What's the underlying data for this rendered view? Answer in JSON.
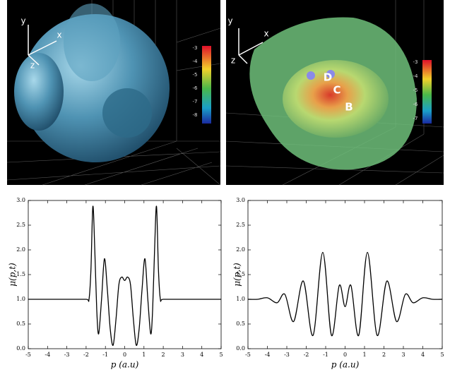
{
  "images": [
    {
      "axis_labels": [
        "y",
        "x",
        "z"
      ],
      "colorbar_ticks": [
        "-3",
        "-4",
        "-5",
        "-6",
        "-7",
        "-8"
      ]
    },
    {
      "axis_labels": [
        "y",
        "x",
        "z"
      ],
      "markers": [
        "D",
        "C",
        "B"
      ],
      "colorbar_ticks": [
        "-3",
        "-4",
        "-5",
        "-6",
        "-7"
      ]
    }
  ],
  "chart_data": [
    {
      "type": "line",
      "x_label": "p (a.u)",
      "y_label": "μ(p,t)",
      "x": [
        -5,
        -4,
        -3,
        -2,
        -1.85,
        -1.75,
        -1.65,
        -1.55,
        -1.45,
        -1.35,
        -1.2,
        -1.05,
        -0.9,
        -0.75,
        -0.6,
        -0.45,
        -0.3,
        -0.15,
        0,
        0.15,
        0.3,
        0.45,
        0.6,
        0.75,
        0.9,
        1.05,
        1.2,
        1.35,
        1.45,
        1.55,
        1.65,
        1.75,
        1.85,
        2,
        3,
        4,
        5
      ],
      "series": [
        {
          "color": "#000000",
          "values": [
            1,
            1,
            1,
            1,
            1.0,
            1.6,
            2.88,
            2.0,
            0.8,
            0.3,
            1.0,
            1.82,
            1.2,
            0.4,
            0.07,
            0.6,
            1.3,
            1.45,
            1.38,
            1.45,
            1.3,
            0.6,
            0.07,
            0.4,
            1.2,
            1.82,
            1.0,
            0.3,
            0.8,
            2.0,
            2.88,
            1.6,
            1.0,
            1,
            1,
            1,
            1
          ]
        }
      ],
      "xlim": [
        -5,
        5
      ],
      "xticks": [
        -5,
        -4,
        -3,
        -2,
        -1,
        0,
        1,
        2,
        3,
        4,
        5
      ],
      "ylim": [
        0,
        3
      ],
      "yticks": [
        {
          "value": 0,
          "label": "0.0"
        },
        0.5,
        {
          "value": 1,
          "label": "1.0"
        },
        1.5,
        {
          "value": 2,
          "label": "2.0"
        },
        2.5,
        {
          "value": 3,
          "label": "3.0"
        }
      ]
    },
    {
      "type": "line",
      "x_label": "p (a.u)",
      "y_label": "μ(p,t)",
      "x": [
        -5,
        -4.5,
        -4,
        -3.5,
        -3.1,
        -2.65,
        -2.15,
        -1.65,
        -1.15,
        -0.7,
        -0.3,
        0,
        0.3,
        0.7,
        1.15,
        1.65,
        2.15,
        2.65,
        3.1,
        3.5,
        4,
        4.5,
        5
      ],
      "series": [
        {
          "color": "#000000",
          "values": [
            1,
            1.0,
            1.03,
            0.93,
            1.1,
            0.55,
            1.37,
            0.27,
            1.95,
            0.27,
            1.28,
            0.85,
            1.28,
            0.27,
            1.95,
            0.27,
            1.37,
            0.55,
            1.1,
            0.93,
            1.03,
            1.0,
            1
          ]
        }
      ],
      "xlim": [
        -5,
        5
      ],
      "xticks": [
        -5,
        -4,
        -3,
        -2,
        -1,
        0,
        1,
        2,
        3,
        4,
        5
      ],
      "ylim": [
        0,
        3
      ],
      "yticks": [
        {
          "value": 0,
          "label": "0.0"
        },
        0.5,
        {
          "value": 1,
          "label": "1.0"
        },
        1.5,
        {
          "value": 2,
          "label": "2.0"
        },
        2.5,
        {
          "value": 3,
          "label": "3.0"
        }
      ]
    }
  ]
}
